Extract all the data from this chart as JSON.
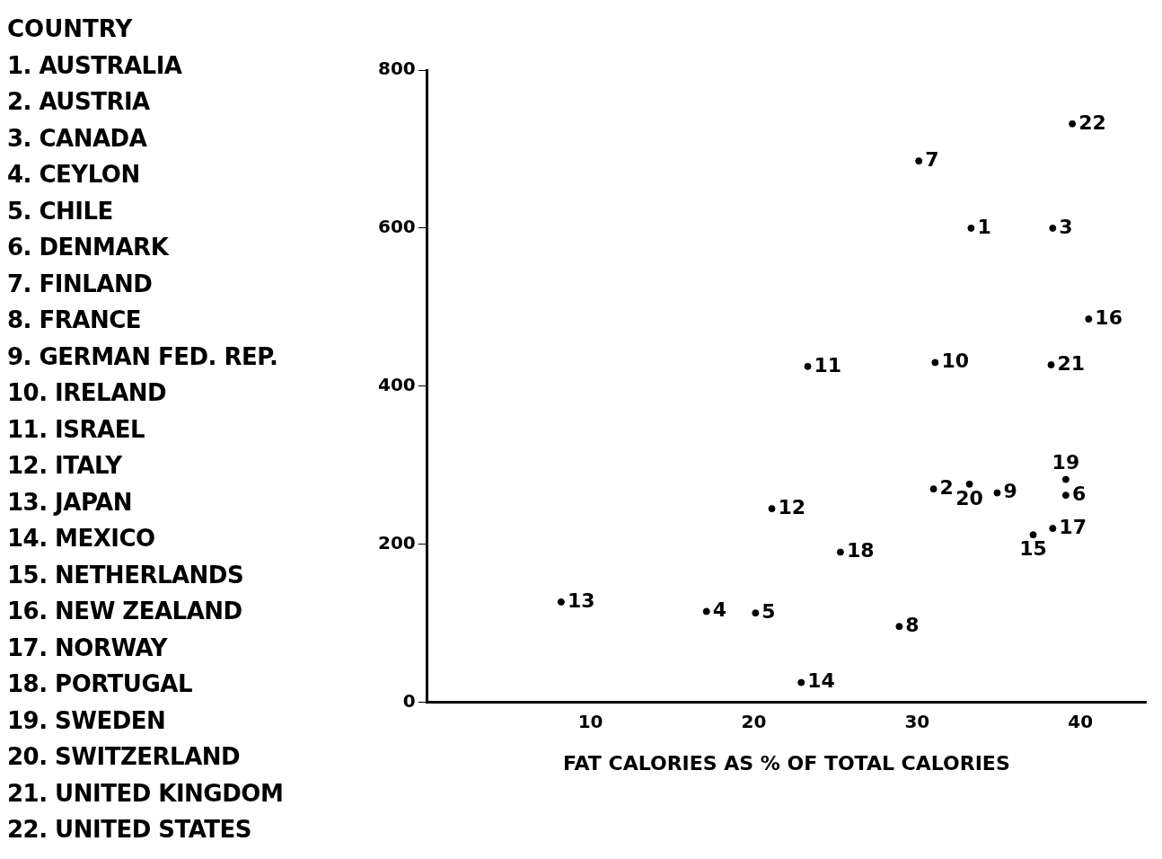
{
  "chart_data": {
    "type": "scatter",
    "xlabel": "FAT CALORIES AS % OF TOTAL CALORIES",
    "annotations": [
      "COUNTRY",
      "1. AUSTRALIA",
      "2. AUSTRIA",
      "3. CANADA",
      "4. CEYLON",
      "5. CHILE",
      "6. DENMARK",
      "7. FINLAND",
      "8. FRANCE",
      "9. GERMAN FED. REP.",
      "10. IRELAND",
      "11. ISRAEL",
      "12. ITALY",
      "13. JAPAN",
      "14. MEXICO",
      "15. NETHERLANDS",
      "16. NEW ZEALAND",
      "17. NORWAY",
      "18. PORTUGAL",
      "19. SWEDEN",
      "20. SWITZERLAND",
      "21. UNITED KINGDOM",
      "22. UNITED STATES"
    ],
    "series": [
      {
        "name": "1",
        "x": [
          33.3
        ],
        "values": [
          600
        ]
      },
      {
        "name": "2",
        "x": [
          31.0
        ],
        "values": [
          270
        ]
      },
      {
        "name": "3",
        "x": [
          38.3
        ],
        "values": [
          600
        ]
      },
      {
        "name": "4",
        "x": [
          17.1
        ],
        "values": [
          115
        ]
      },
      {
        "name": "5",
        "x": [
          20.1
        ],
        "values": [
          113
        ]
      },
      {
        "name": "6",
        "x": [
          39.1
        ],
        "values": [
          262
        ]
      },
      {
        "name": "7",
        "x": [
          30.1
        ],
        "values": [
          685
        ]
      },
      {
        "name": "8",
        "x": [
          28.9
        ],
        "values": [
          96
        ]
      },
      {
        "name": "9",
        "x": [
          34.9
        ],
        "values": [
          265
        ]
      },
      {
        "name": "10",
        "x": [
          31.1
        ],
        "values": [
          430
        ]
      },
      {
        "name": "11",
        "x": [
          23.3
        ],
        "values": [
          425
        ]
      },
      {
        "name": "12",
        "x": [
          21.1
        ],
        "values": [
          245
        ]
      },
      {
        "name": "13",
        "x": [
          8.2
        ],
        "values": [
          127
        ]
      },
      {
        "name": "14",
        "x": [
          22.9
        ],
        "values": [
          25
        ]
      },
      {
        "name": "15",
        "x": [
          37.1
        ],
        "values": [
          212
        ]
      },
      {
        "name": "16",
        "x": [
          40.5
        ],
        "values": [
          485
        ]
      },
      {
        "name": "17",
        "x": [
          38.3
        ],
        "values": [
          220
        ]
      },
      {
        "name": "18",
        "x": [
          25.3
        ],
        "values": [
          190
        ]
      },
      {
        "name": "19",
        "x": [
          39.1
        ],
        "values": [
          282
        ]
      },
      {
        "name": "20",
        "x": [
          33.2
        ],
        "values": [
          276
        ]
      },
      {
        "name": "21",
        "x": [
          38.2
        ],
        "values": [
          427
        ]
      },
      {
        "name": "22",
        "x": [
          39.5
        ],
        "values": [
          732
        ]
      }
    ],
    "color": "#000000",
    "marker": "circle",
    "xlim": [
      0,
      44
    ],
    "xticks": [
      10,
      20,
      30,
      40
    ],
    "ylim": [
      0,
      800
    ],
    "yticks": [
      0,
      200,
      400,
      600,
      800
    ],
    "grid": false
  }
}
